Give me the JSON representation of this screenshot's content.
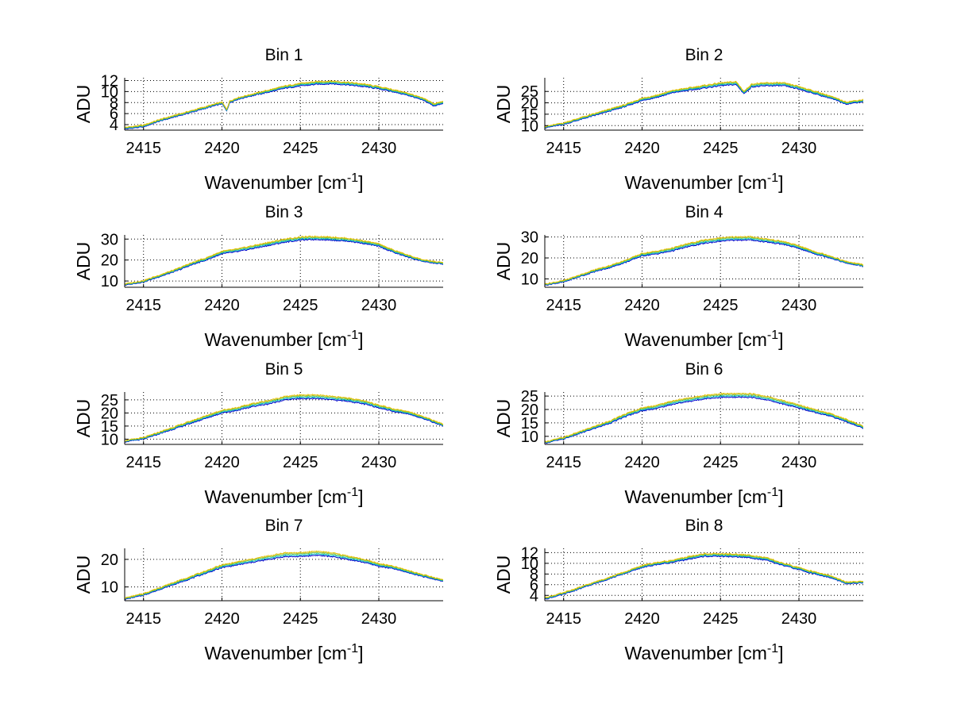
{
  "colors": {
    "background": "#ffffff",
    "axes": "#000000",
    "grid": "#000000",
    "series_blue": "#0000cc",
    "series_cyan": "#00bfbf",
    "series_green": "#7fbf3f",
    "series_yellow": "#e5c100"
  },
  "chart_data": [
    {
      "type": "line",
      "title": "Bin 1",
      "xlabel": "Wavenumber [cm",
      "xlabel_sup": "-1",
      "xlabel_end": "]",
      "ylabel": "ADU",
      "xlim": [
        2413.8,
        2434.1
      ],
      "ylim": [
        3,
        12.5
      ],
      "xticks": [
        2415,
        2420,
        2425,
        2430
      ],
      "yticks": [
        4,
        6,
        8,
        10,
        12
      ],
      "grid": true,
      "legend": "none",
      "series": [
        {
          "name": "series-1",
          "color": "blue",
          "x": [
            2413.8,
            2415,
            2416,
            2417,
            2418,
            2419,
            2420,
            2420.3,
            2420.5,
            2421,
            2422,
            2423,
            2424,
            2425,
            2426,
            2427,
            2428,
            2429,
            2430,
            2431,
            2432,
            2433,
            2433.5,
            2434.1
          ],
          "y": [
            3.2,
            3.6,
            4.6,
            5.4,
            6.2,
            7.0,
            7.8,
            6.5,
            8.0,
            8.6,
            9.3,
            9.9,
            10.6,
            11.0,
            11.3,
            11.4,
            11.2,
            10.9,
            10.5,
            9.9,
            9.2,
            8.2,
            7.4,
            7.8
          ]
        },
        {
          "name": "series-2",
          "color": "yellow",
          "x": [
            2413.8,
            2415,
            2416,
            2417,
            2418,
            2419,
            2420,
            2420.3,
            2420.5,
            2421,
            2422,
            2423,
            2424,
            2425,
            2426,
            2427,
            2428,
            2429,
            2430,
            2431,
            2432,
            2433,
            2433.5,
            2434.1
          ],
          "y": [
            3.5,
            3.9,
            4.9,
            5.7,
            6.5,
            7.3,
            8.1,
            6.8,
            8.3,
            8.9,
            9.6,
            10.3,
            11.0,
            11.5,
            11.8,
            11.9,
            11.7,
            11.4,
            10.9,
            10.3,
            9.6,
            8.6,
            7.8,
            8.2
          ]
        }
      ]
    },
    {
      "type": "line",
      "title": "Bin 2",
      "xlabel": "Wavenumber [cm",
      "xlabel_sup": "-1",
      "xlabel_end": "]",
      "ylabel": "ADU",
      "xlim": [
        2413.8,
        2434.1
      ],
      "ylim": [
        8,
        31
      ],
      "xticks": [
        2415,
        2420,
        2425,
        2430
      ],
      "yticks": [
        10,
        15,
        20,
        25
      ],
      "grid": true,
      "legend": "none",
      "series": [
        {
          "name": "series-1",
          "color": "blue",
          "x": [
            2413.8,
            2415,
            2416,
            2417,
            2418,
            2419,
            2420,
            2421,
            2422,
            2423,
            2424,
            2425,
            2426,
            2426.5,
            2427,
            2428,
            2429,
            2430,
            2431,
            2432,
            2433,
            2434.1
          ],
          "y": [
            9,
            10.5,
            12.5,
            14.5,
            16.5,
            18.5,
            21,
            22.5,
            24.5,
            25.5,
            26.5,
            27.5,
            28,
            24,
            27,
            27.5,
            27.5,
            26,
            24,
            22,
            19.5,
            20.5
          ]
        },
        {
          "name": "series-2",
          "color": "yellow",
          "x": [
            2413.8,
            2415,
            2416,
            2417,
            2418,
            2419,
            2420,
            2421,
            2422,
            2423,
            2424,
            2425,
            2426,
            2426.5,
            2427,
            2428,
            2429,
            2430,
            2431,
            2432,
            2433,
            2434.1
          ],
          "y": [
            9.6,
            11.2,
            13.3,
            15.3,
            17.4,
            19.4,
            22,
            23.5,
            25.5,
            26.6,
            27.7,
            28.8,
            29.3,
            25,
            28.3,
            28.8,
            28.8,
            27.2,
            25.1,
            23,
            20.4,
            21.4
          ]
        }
      ]
    },
    {
      "type": "line",
      "title": "Bin 3",
      "xlabel": "Wavenumber [cm",
      "xlabel_sup": "-1",
      "xlabel_end": "]",
      "ylabel": "ADU",
      "xlim": [
        2413.8,
        2434.1
      ],
      "ylim": [
        7,
        32
      ],
      "xticks": [
        2415,
        2420,
        2425,
        2430
      ],
      "yticks": [
        10,
        20,
        30
      ],
      "grid": true,
      "legend": "none",
      "series": [
        {
          "name": "series-1",
          "color": "blue",
          "x": [
            2413.8,
            2415,
            2416,
            2417,
            2418,
            2419,
            2420,
            2421,
            2422,
            2423,
            2424,
            2425,
            2426,
            2427,
            2428,
            2429,
            2430,
            2431,
            2432,
            2433,
            2434.1
          ],
          "y": [
            8,
            9.5,
            12,
            14.5,
            17.5,
            20,
            23,
            24,
            25.5,
            27,
            28.5,
            29.5,
            29.8,
            29.5,
            29,
            28,
            26.5,
            23.5,
            21,
            19,
            18
          ]
        },
        {
          "name": "series-2",
          "color": "yellow",
          "x": [
            2413.8,
            2415,
            2416,
            2417,
            2418,
            2419,
            2420,
            2421,
            2422,
            2423,
            2424,
            2425,
            2426,
            2427,
            2428,
            2429,
            2430,
            2431,
            2432,
            2433,
            2434.1
          ],
          "y": [
            8.6,
            10.2,
            12.8,
            15.4,
            18.5,
            21.1,
            24.2,
            25.3,
            26.9,
            28.5,
            30,
            31,
            31.3,
            31,
            30.4,
            29.3,
            27.7,
            24.6,
            22,
            19.8,
            18.8
          ]
        }
      ]
    },
    {
      "type": "line",
      "title": "Bin 4",
      "xlabel": "Wavenumber [cm",
      "xlabel_sup": "-1",
      "xlabel_end": "]",
      "ylabel": "ADU",
      "xlim": [
        2413.8,
        2434.1
      ],
      "ylim": [
        6,
        31
      ],
      "xticks": [
        2415,
        2420,
        2425,
        2430
      ],
      "yticks": [
        10,
        20,
        30
      ],
      "grid": true,
      "legend": "none",
      "series": [
        {
          "name": "series-1",
          "color": "blue",
          "x": [
            2413.8,
            2415,
            2416,
            2417,
            2418,
            2419,
            2420,
            2421,
            2422,
            2423,
            2424,
            2425,
            2426,
            2427,
            2428,
            2429,
            2430,
            2431,
            2432,
            2433,
            2434.1
          ],
          "y": [
            7,
            8.5,
            11,
            13.5,
            15.5,
            18,
            21,
            22,
            23.5,
            25.5,
            27,
            28,
            28.5,
            28.5,
            27.5,
            26.5,
            24.5,
            22,
            20,
            17.5,
            16
          ]
        },
        {
          "name": "series-2",
          "color": "yellow",
          "x": [
            2413.8,
            2415,
            2416,
            2417,
            2418,
            2419,
            2420,
            2421,
            2422,
            2423,
            2424,
            2425,
            2426,
            2427,
            2428,
            2429,
            2430,
            2431,
            2432,
            2433,
            2434.1
          ],
          "y": [
            7.6,
            9.2,
            11.8,
            14.4,
            16.5,
            19.1,
            22.2,
            23.3,
            24.9,
            27,
            28.6,
            29.6,
            30.1,
            30.1,
            29,
            27.9,
            25.8,
            23.1,
            21,
            18.3,
            16.8
          ]
        }
      ]
    },
    {
      "type": "line",
      "title": "Bin 5",
      "xlabel": "Wavenumber [cm",
      "xlabel_sup": "-1",
      "xlabel_end": "]",
      "ylabel": "ADU",
      "xlim": [
        2413.8,
        2434.1
      ],
      "ylim": [
        8,
        28
      ],
      "xticks": [
        2415,
        2420,
        2425,
        2430
      ],
      "yticks": [
        10,
        15,
        20,
        25
      ],
      "grid": true,
      "legend": "none",
      "series": [
        {
          "name": "series-1",
          "color": "blue",
          "x": [
            2413.8,
            2415,
            2416,
            2417,
            2418,
            2419,
            2420,
            2421,
            2422,
            2423,
            2424,
            2425,
            2426,
            2427,
            2428,
            2429,
            2430,
            2431,
            2432,
            2433,
            2434.1
          ],
          "y": [
            9,
            10,
            12,
            14,
            16,
            18,
            20,
            21,
            22.5,
            23.5,
            25,
            25.5,
            25.5,
            25,
            24.5,
            23.5,
            22,
            20.5,
            19.5,
            17.5,
            15
          ]
        },
        {
          "name": "series-2",
          "color": "yellow",
          "x": [
            2413.8,
            2415,
            2416,
            2417,
            2418,
            2419,
            2420,
            2421,
            2422,
            2423,
            2424,
            2425,
            2426,
            2427,
            2428,
            2429,
            2430,
            2431,
            2432,
            2433,
            2434.1
          ],
          "y": [
            9.5,
            10.6,
            12.7,
            14.8,
            16.9,
            19,
            21.1,
            22.1,
            23.7,
            24.8,
            26.3,
            26.9,
            26.9,
            26.3,
            25.8,
            24.7,
            23.1,
            21.5,
            20.4,
            18.3,
            15.7
          ]
        }
      ]
    },
    {
      "type": "line",
      "title": "Bin 6",
      "xlabel": "Wavenumber [cm",
      "xlabel_sup": "-1",
      "xlabel_end": "]",
      "ylabel": "ADU",
      "xlim": [
        2413.8,
        2434.1
      ],
      "ylim": [
        7,
        26.5
      ],
      "xticks": [
        2415,
        2420,
        2425,
        2430
      ],
      "yticks": [
        10,
        15,
        20,
        25
      ],
      "grid": true,
      "legend": "none",
      "series": [
        {
          "name": "series-1",
          "color": "blue",
          "x": [
            2413.8,
            2415,
            2416,
            2417,
            2418,
            2419,
            2420,
            2421,
            2422,
            2423,
            2424,
            2425,
            2426,
            2427,
            2428,
            2429,
            2430,
            2431,
            2432,
            2433,
            2434.1
          ],
          "y": [
            7.5,
            9,
            11,
            13,
            15,
            17.5,
            19.5,
            20.5,
            22,
            23,
            24,
            24.5,
            24.5,
            24.5,
            23.5,
            22,
            20.5,
            19,
            17.5,
            15.5,
            13
          ]
        },
        {
          "name": "series-2",
          "color": "yellow",
          "x": [
            2413.8,
            2415,
            2416,
            2417,
            2418,
            2419,
            2420,
            2421,
            2422,
            2423,
            2424,
            2425,
            2426,
            2427,
            2428,
            2429,
            2430,
            2431,
            2432,
            2433,
            2434.1
          ],
          "y": [
            8,
            9.6,
            11.7,
            13.8,
            15.9,
            18.5,
            20.6,
            21.7,
            23.3,
            24.3,
            25.3,
            25.9,
            25.9,
            25.9,
            24.8,
            23.3,
            21.7,
            20.1,
            18.5,
            16.4,
            13.8
          ]
        }
      ]
    },
    {
      "type": "line",
      "title": "Bin 7",
      "xlabel": "Wavenumber [cm",
      "xlabel_sup": "-1",
      "xlabel_end": "]",
      "ylabel": "ADU",
      "xlim": [
        2413.8,
        2434.1
      ],
      "ylim": [
        5,
        24
      ],
      "xticks": [
        2415,
        2420,
        2425,
        2430
      ],
      "yticks": [
        10,
        20
      ],
      "grid": true,
      "legend": "none",
      "series": [
        {
          "name": "series-1",
          "color": "blue",
          "x": [
            2413.8,
            2415,
            2416,
            2417,
            2418,
            2419,
            2420,
            2421,
            2422,
            2423,
            2424,
            2425,
            2426,
            2427,
            2428,
            2429,
            2430,
            2431,
            2432,
            2433,
            2434.1
          ],
          "y": [
            5.5,
            7,
            9,
            11,
            13,
            15,
            17,
            18,
            19,
            20,
            21,
            21,
            21.5,
            21,
            20,
            19,
            17.5,
            16.5,
            15,
            13.5,
            12
          ]
        },
        {
          "name": "series-2",
          "color": "yellow",
          "x": [
            2413.8,
            2415,
            2416,
            2417,
            2418,
            2419,
            2420,
            2421,
            2422,
            2423,
            2424,
            2425,
            2426,
            2427,
            2428,
            2429,
            2430,
            2431,
            2432,
            2433,
            2434.1
          ],
          "y": [
            6,
            7.6,
            9.7,
            11.8,
            13.8,
            15.9,
            18,
            19.1,
            20.2,
            21.3,
            22.4,
            22.4,
            23,
            22.4,
            21.3,
            20.1,
            18.5,
            17.4,
            15.8,
            14.2,
            12.6
          ]
        }
      ]
    },
    {
      "type": "line",
      "title": "Bin 8",
      "xlabel": "Wavenumber [cm",
      "xlabel_sup": "-1",
      "xlabel_end": "]",
      "ylabel": "ADU",
      "xlim": [
        2413.8,
        2434.1
      ],
      "ylim": [
        3,
        12.8
      ],
      "xticks": [
        2415,
        2420,
        2425,
        2430
      ],
      "yticks": [
        4,
        6,
        8,
        10,
        12
      ],
      "grid": true,
      "legend": "none",
      "series": [
        {
          "name": "series-1",
          "color": "blue",
          "x": [
            2413.8,
            2415,
            2416,
            2417,
            2418,
            2419,
            2420,
            2421,
            2422,
            2423,
            2424,
            2425,
            2426,
            2427,
            2428,
            2429,
            2430,
            2431,
            2432,
            2433,
            2434.1
          ],
          "y": [
            3.3,
            4.2,
            5.2,
            6.2,
            7.2,
            8.2,
            9.2,
            9.8,
            10.2,
            10.8,
            11.3,
            11.3,
            11.2,
            11.0,
            10.5,
            9.6,
            8.8,
            8.0,
            7.3,
            6.2,
            6.3
          ]
        },
        {
          "name": "series-2",
          "color": "yellow",
          "x": [
            2413.8,
            2415,
            2416,
            2417,
            2418,
            2419,
            2420,
            2421,
            2422,
            2423,
            2424,
            2425,
            2426,
            2427,
            2428,
            2429,
            2430,
            2431,
            2432,
            2433,
            2434.1
          ],
          "y": [
            3.6,
            4.5,
            5.5,
            6.5,
            7.5,
            8.5,
            9.6,
            10.2,
            10.6,
            11.3,
            11.8,
            11.8,
            11.7,
            11.5,
            11.0,
            10.0,
            9.2,
            8.4,
            7.7,
            6.5,
            6.6
          ]
        }
      ]
    }
  ]
}
